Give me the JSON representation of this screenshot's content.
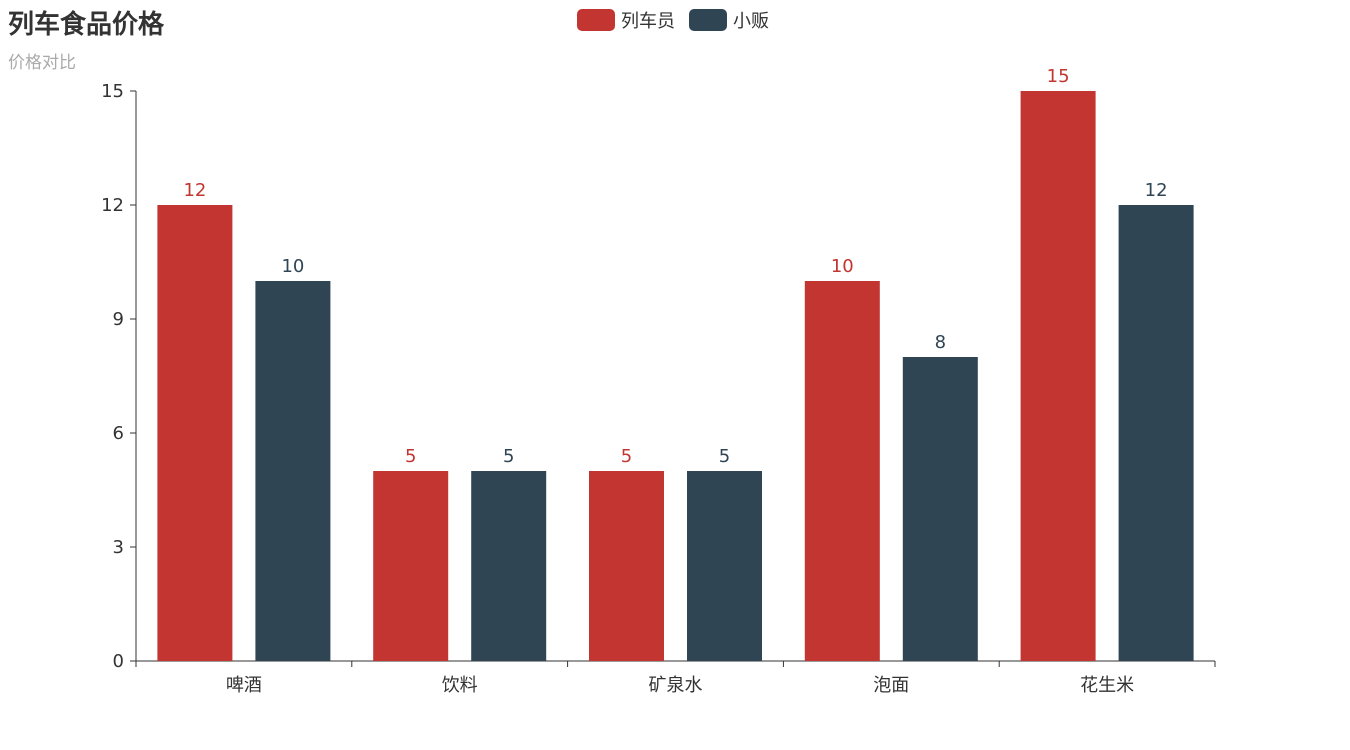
{
  "title": "列车食品价格",
  "subtitle": "价格对比",
  "colors": {
    "series_0": "#c23531",
    "series_1": "#2f4554",
    "axis": "#333333"
  },
  "chart_data": {
    "type": "bar",
    "title": "列车食品价格",
    "subtitle": "价格对比",
    "categories": [
      "啤酒",
      "饮料",
      "矿泉水",
      "泡面",
      "花生米"
    ],
    "series": [
      {
        "name": "列车员",
        "values": [
          12,
          5,
          5,
          10,
          15
        ]
      },
      {
        "name": "小贩",
        "values": [
          10,
          5,
          5,
          8,
          12
        ]
      }
    ],
    "ylim": [
      0,
      15
    ],
    "yticks": [
      0,
      3,
      6,
      9,
      12,
      15
    ],
    "xlabel": "",
    "ylabel": "",
    "grid": false,
    "legend": "top-center",
    "data_labels": true
  }
}
